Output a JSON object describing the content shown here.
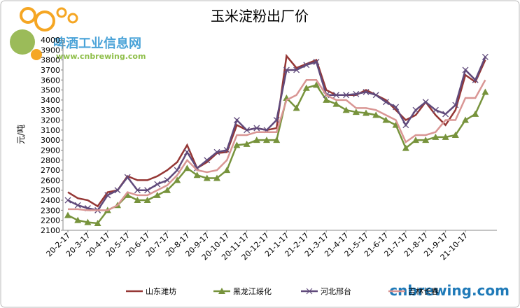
{
  "chart_data": {
    "type": "line",
    "title": "玉米淀粉出厂价",
    "y_label": "元/吨",
    "watermark": "啤酒工业信息网",
    "watermark_url": "www.cnbrewing.com",
    "brand": "cnbrewing.com",
    "categories": [
      "20-2-17",
      null,
      "20-3-17",
      null,
      "20-4-17",
      null,
      "20-5-17",
      null,
      "20-6-17",
      null,
      "20-7-17",
      null,
      "20-8-17",
      null,
      "20-9-17",
      null,
      "20-10-17",
      null,
      "20-11-17",
      null,
      "20-12-17",
      null,
      "21-1-17",
      null,
      "21-2-17",
      null,
      "21-3-17",
      null,
      "21-4-17",
      null,
      "21-5-17",
      null,
      "21-6-17",
      null,
      "21-7-17",
      null,
      "21-8-17",
      null,
      "21-9-17",
      null,
      "21-10-17",
      null,
      null
    ],
    "series": [
      {
        "name": "山东潍坊",
        "color": "#953735",
        "marker": "none",
        "values": [
          2480,
          2420,
          2400,
          2340,
          2480,
          2500,
          2640,
          2600,
          2600,
          2640,
          2700,
          2780,
          2950,
          2720,
          2780,
          2870,
          2880,
          3150,
          3100,
          3120,
          3100,
          3120,
          3840,
          3720,
          3760,
          3800,
          3500,
          3450,
          3450,
          3450,
          3500,
          3450,
          3400,
          3300,
          3200,
          3250,
          3380,
          3250,
          3150,
          3300,
          3650,
          3580,
          3800
        ]
      },
      {
        "name": "黑龙江绥化",
        "color": "#77933c",
        "marker": "triangle",
        "values": [
          2250,
          2200,
          2180,
          2170,
          2300,
          2350,
          2450,
          2400,
          2400,
          2450,
          2500,
          2600,
          2720,
          2650,
          2620,
          2620,
          2700,
          2950,
          2960,
          3000,
          3000,
          3000,
          3420,
          3320,
          3520,
          3550,
          3400,
          3360,
          3300,
          3280,
          3270,
          3250,
          3200,
          3150,
          2920,
          3000,
          3000,
          3030,
          3030,
          3050,
          3200,
          3260,
          3480
        ]
      },
      {
        "name": "河北邢台",
        "color": "#604a7b",
        "marker": "x",
        "values": [
          2400,
          2350,
          2320,
          2300,
          2450,
          2500,
          2630,
          2500,
          2500,
          2560,
          2600,
          2700,
          2880,
          2720,
          2800,
          2880,
          2900,
          3200,
          3100,
          3120,
          3100,
          3200,
          3700,
          3700,
          3750,
          3780,
          3450,
          3450,
          3450,
          3460,
          3480,
          3450,
          3380,
          3330,
          3150,
          3300,
          3380,
          3300,
          3260,
          3350,
          3700,
          3600,
          3830
        ]
      },
      {
        "name": "吉林长春",
        "color": "#d99694",
        "marker": "none",
        "values": [
          2310,
          2310,
          2300,
          2300,
          2300,
          2350,
          2480,
          2450,
          2450,
          2500,
          2550,
          2650,
          2800,
          2700,
          2680,
          2700,
          2800,
          3050,
          3050,
          3080,
          3080,
          3080,
          3400,
          3450,
          3600,
          3600,
          3450,
          3400,
          3400,
          3320,
          3320,
          3300,
          3250,
          3200,
          2980,
          3050,
          3050,
          3080,
          3200,
          3200,
          3420,
          3420,
          3600
        ]
      }
    ],
    "ylim": [
      2100,
      4000
    ],
    "yticks": [
      2100,
      2200,
      2300,
      2400,
      2500,
      2600,
      2700,
      2800,
      2900,
      3000,
      3100,
      3200,
      3300,
      3400,
      3500,
      3600,
      3700,
      3800,
      3900,
      4000
    ],
    "legend": "bottom"
  }
}
